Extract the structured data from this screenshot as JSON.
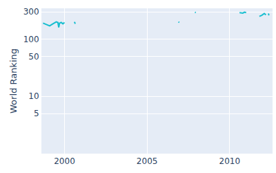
{
  "chart_data": {
    "type": "line",
    "y_label": "World Ranking",
    "color": "#17becf",
    "log": "y",
    "grid": true,
    "x": [
      1998.7,
      1998.9,
      1999.1,
      1999.3,
      1999.5,
      1999.6,
      1999.65,
      1999.7,
      1999.8,
      1999.9,
      2000.0,
      2000.3,
      2000.6,
      2000.65,
      2003.0,
      2006.9,
      2006.95,
      2007.5,
      2007.9,
      2007.95,
      2009.0,
      2010.6,
      2010.8,
      2010.9,
      2011.0,
      2011.4,
      2011.8,
      2011.95,
      2012.1,
      2012.2,
      2012.3,
      2012.35,
      2012.38
    ],
    "values": [
      190,
      180,
      170,
      185,
      200,
      195,
      160,
      190,
      195,
      185,
      195,
      null,
      200,
      185,
      null,
      200,
      195,
      null,
      295,
      290,
      null,
      290,
      285,
      295,
      290,
      null,
      250,
      260,
      280,
      265,
      null,
      280,
      260
    ],
    "xlim": [
      1998.6,
      2012.6
    ],
    "xticks": [
      2000,
      2005,
      2010
    ],
    "ylim": [
      1,
      345
    ],
    "yticks": [
      5,
      10,
      50,
      100,
      300
    ]
  }
}
